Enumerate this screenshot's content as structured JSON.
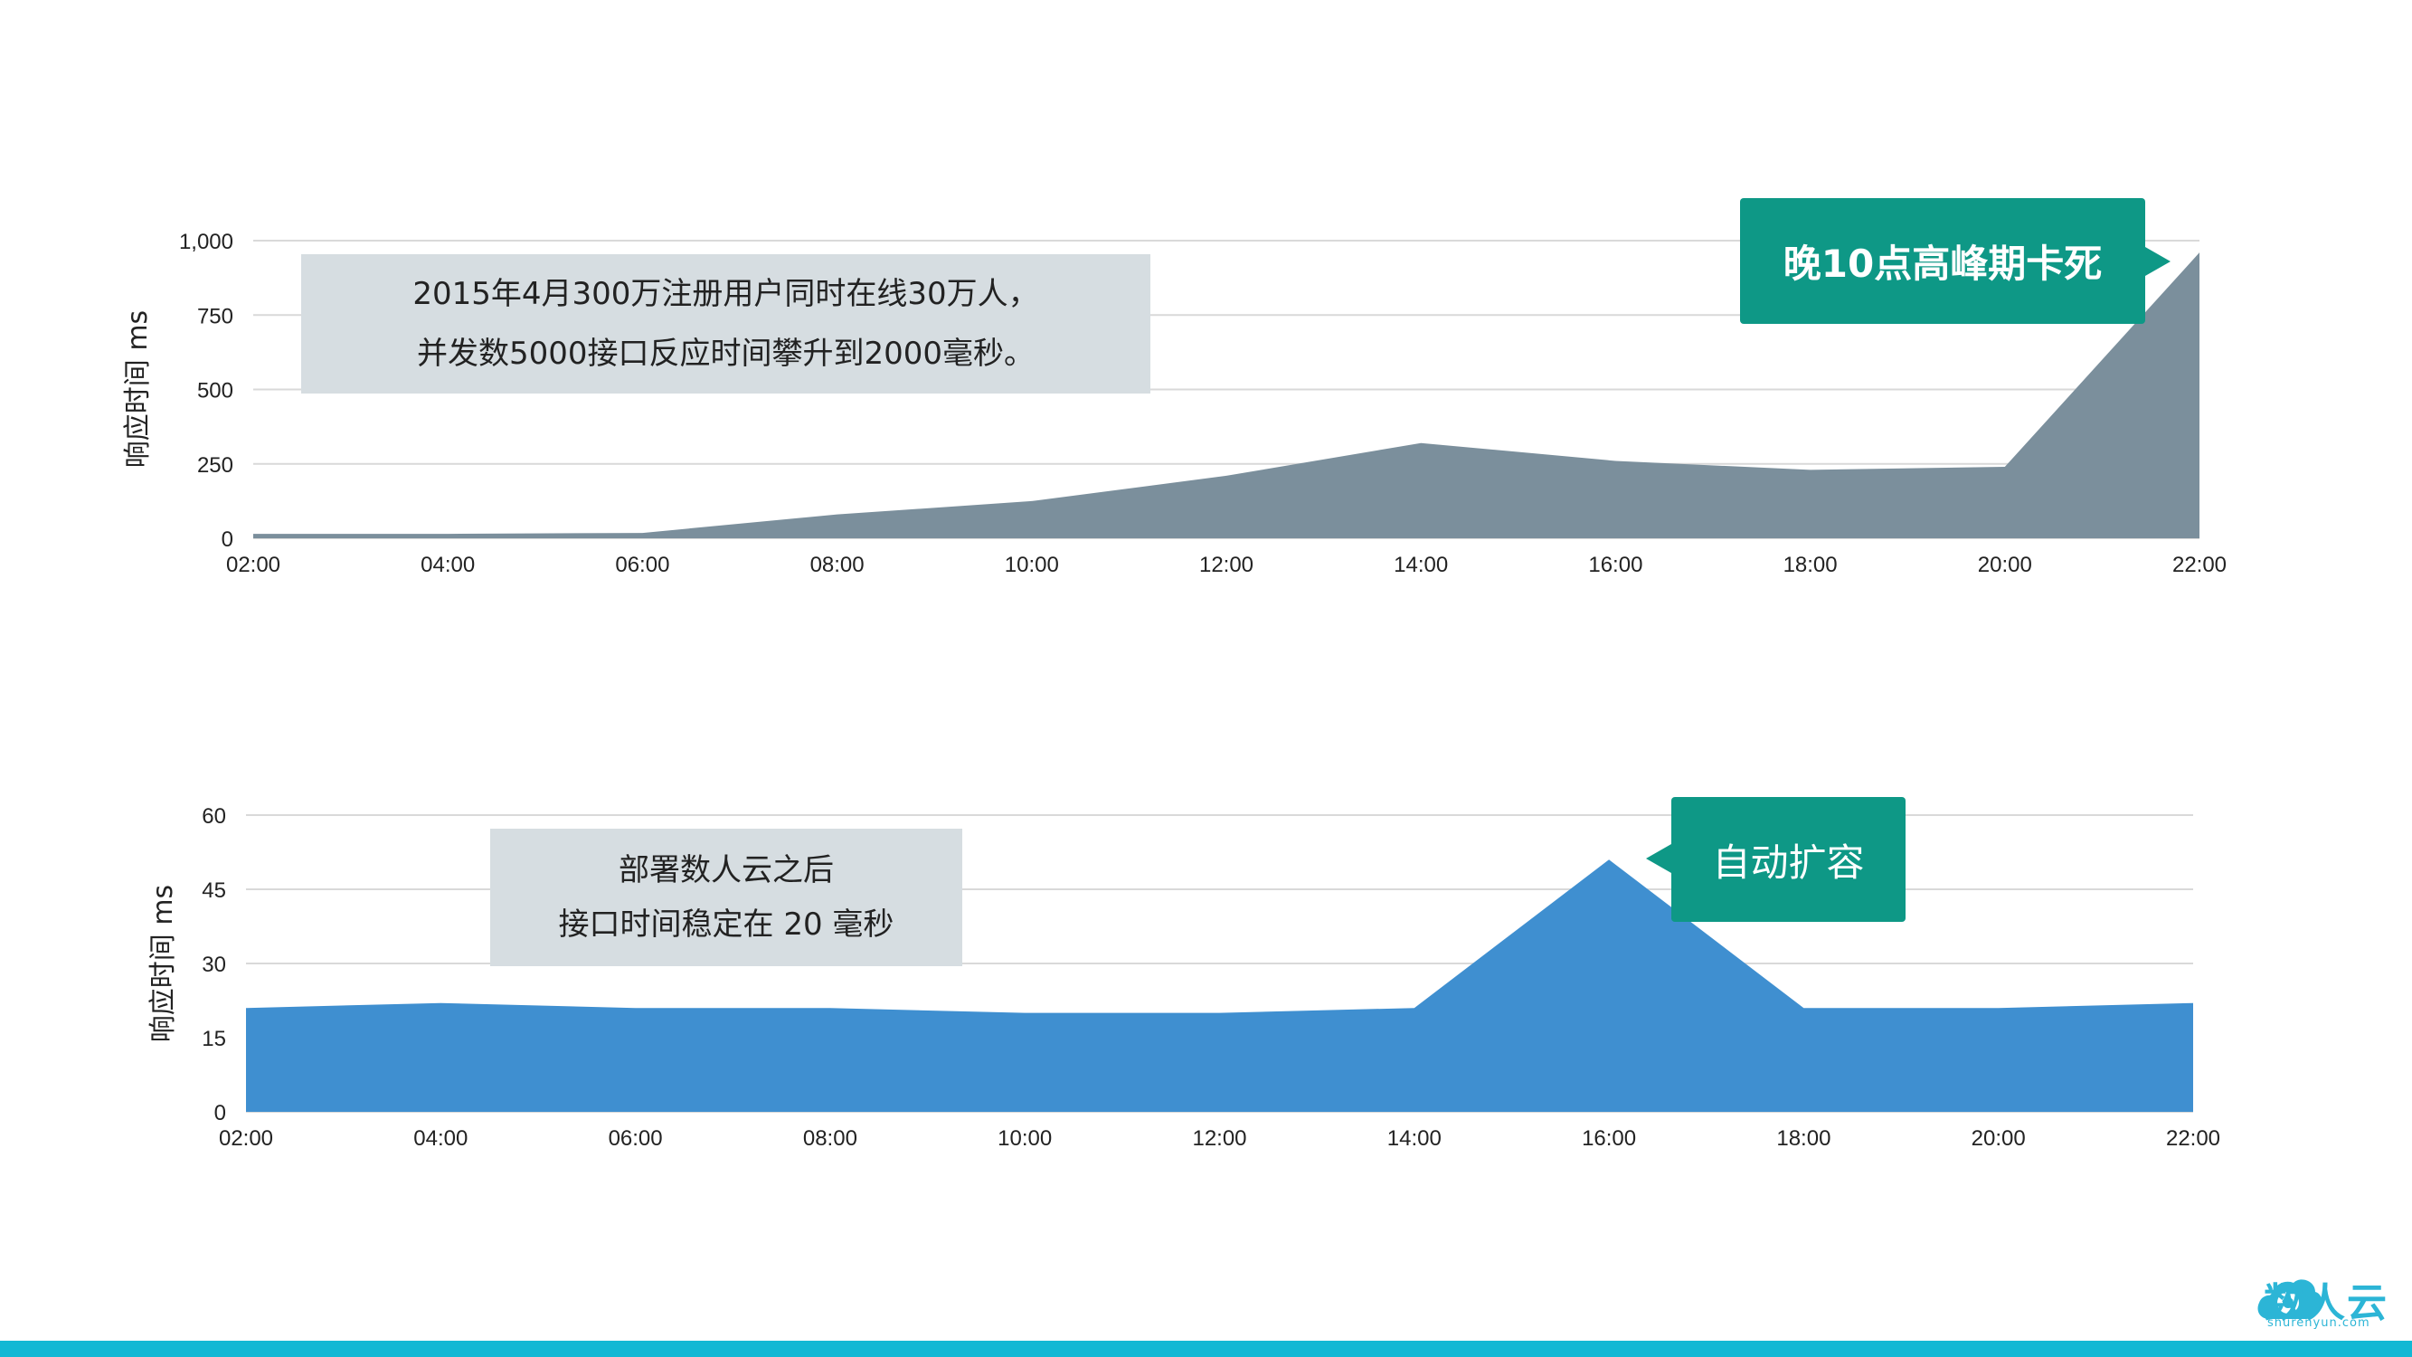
{
  "chart_data": [
    {
      "type": "area",
      "x": [
        "02:00",
        "04:00",
        "06:00",
        "08:00",
        "10:00",
        "12:00",
        "14:00",
        "16:00",
        "18:00",
        "20:00",
        "22:00"
      ],
      "series": [
        {
          "values": [
            15,
            15,
            18,
            80,
            125,
            210,
            320,
            260,
            230,
            240,
            960
          ],
          "color": "#7b8f9c"
        }
      ],
      "ylabel": "响应时间 ms",
      "ylim": [
        0,
        1000
      ],
      "yticks": [
        "0",
        "250",
        "500",
        "750",
        "1,000"
      ],
      "yticks_values": [
        0,
        250,
        500,
        750,
        1000
      ],
      "grid": true,
      "note_lines": [
        "2015年4月300万注册用户同时在线30万人，",
        "并发数5000接口反应时间攀升到2000毫秒。"
      ],
      "callout": "晚10点高峰期卡死"
    },
    {
      "type": "area",
      "x": [
        "02:00",
        "04:00",
        "06:00",
        "08:00",
        "10:00",
        "12:00",
        "14:00",
        "16:00",
        "18:00",
        "20:00",
        "22:00"
      ],
      "series": [
        {
          "values": [
            21,
            22,
            21,
            21,
            20,
            20,
            21,
            51,
            21,
            21,
            22
          ],
          "color": "#3f8fd0"
        }
      ],
      "ylabel": "响应时间 ms",
      "ylim": [
        0,
        60
      ],
      "yticks": [
        "0",
        "15",
        "30",
        "45",
        "60"
      ],
      "yticks_values": [
        0,
        15,
        30,
        45,
        60
      ],
      "grid": true,
      "note_lines": [
        "部署数人云之后",
        "接口时间稳定在 20 毫秒"
      ],
      "callout": "自动扩容"
    }
  ],
  "logo": {
    "name": "数人云",
    "sub": "shurenyun.com",
    "color": "#2cb5d6"
  },
  "bottom_bar_color": "#12b8d4"
}
